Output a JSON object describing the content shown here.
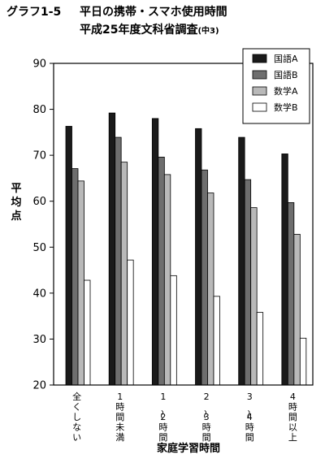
{
  "header": {
    "figure_number": "グラフ1-5",
    "title": "平日の携帯・スマホ使用時間",
    "subtitle": "平成25年度文科省調査",
    "subtitle_note": "(中3)"
  },
  "chart_data": {
    "type": "bar",
    "ylabel": "平均点",
    "xlabel": "家庭学習時間",
    "ylim": [
      20,
      90
    ],
    "yticks": [
      20,
      30,
      40,
      50,
      60,
      70,
      80,
      90
    ],
    "grid": false,
    "legend_position": "top-right",
    "categories": [
      "全くしない",
      "1時間未満",
      "1〜2時間",
      "2〜3時間",
      "3〜4時間",
      "4時間以上"
    ],
    "series": [
      {
        "name": "国語A",
        "color": "#1a1a1a",
        "values": [
          76.3,
          79.2,
          78.0,
          75.8,
          73.9,
          70.3
        ]
      },
      {
        "name": "国語B",
        "color": "#6e6e6e",
        "values": [
          67.1,
          73.9,
          69.6,
          66.8,
          64.7,
          59.7
        ]
      },
      {
        "name": "数学A",
        "color": "#b9b9b9",
        "values": [
          64.4,
          68.5,
          65.8,
          61.8,
          58.6,
          52.8
        ]
      },
      {
        "name": "数学B",
        "color": "#ffffff",
        "values": [
          42.8,
          47.2,
          43.8,
          39.3,
          35.8,
          30.2
        ]
      }
    ]
  }
}
